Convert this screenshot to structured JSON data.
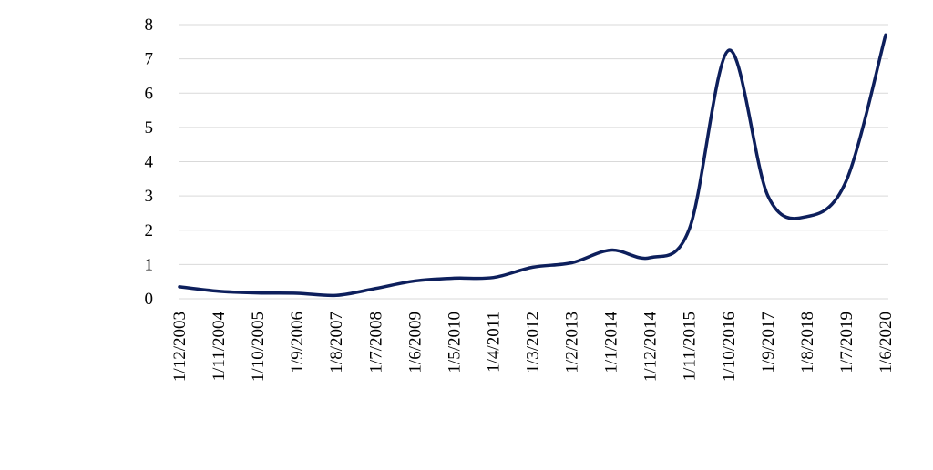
{
  "chart_data": {
    "type": "line",
    "categories": [
      "1/12/2003",
      "1/11/2004",
      "1/10/2005",
      "1/9/2006",
      "1/8/2007",
      "1/7/2008",
      "1/6/2009",
      "1/5/2010",
      "1/4/2011",
      "1/3/2012",
      "1/2/2013",
      "1/1/2014",
      "1/12/2014",
      "1/11/2015",
      "1/10/2016",
      "1/9/2017",
      "1/8/2018",
      "1/7/2019",
      "1/6/2020"
    ],
    "series": [
      {
        "color": "#0d1f5c",
        "values": [
          0.35,
          0.22,
          0.17,
          0.16,
          0.1,
          0.3,
          0.52,
          0.6,
          0.62,
          0.92,
          1.05,
          1.42,
          1.2,
          2.05,
          7.25,
          3.0,
          2.4,
          3.45,
          7.7
        ]
      }
    ],
    "ylim": [
      0,
      8
    ],
    "yticks": [
      0,
      1,
      2,
      3,
      4,
      5,
      6,
      7,
      8
    ],
    "grid": true
  }
}
